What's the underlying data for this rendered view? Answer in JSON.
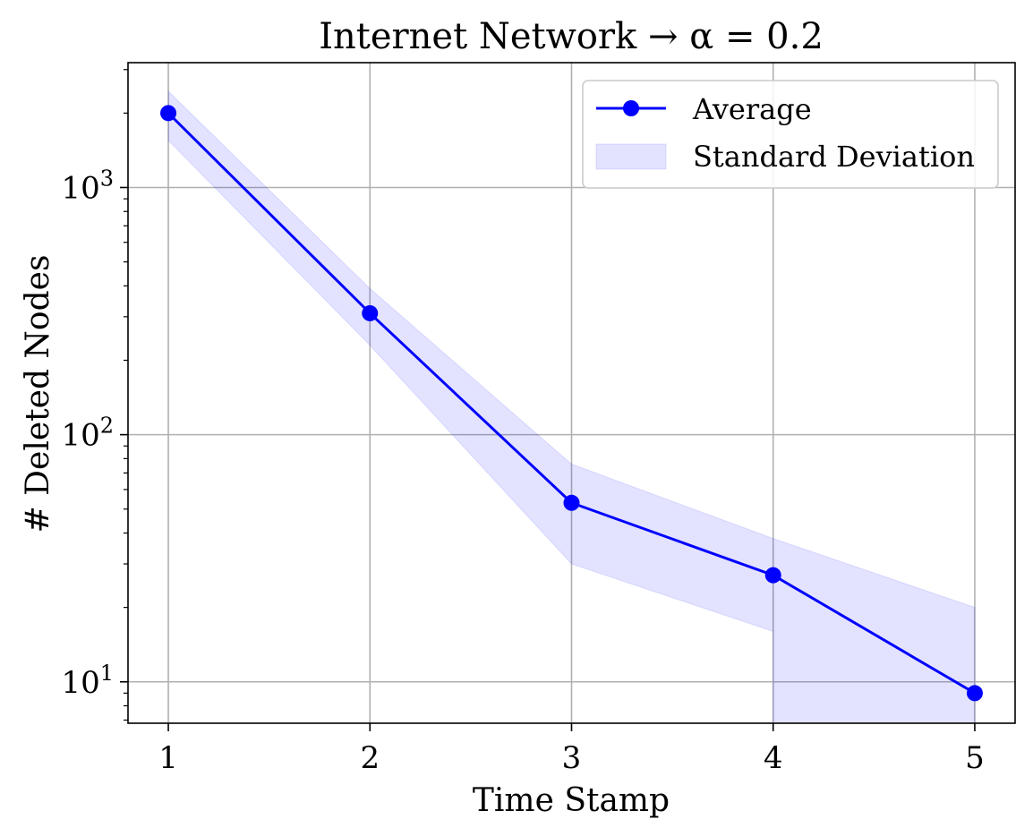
{
  "chart_data": {
    "type": "line",
    "title": "Internet Network → α = 0.2",
    "xlabel": "Time Stamp",
    "ylabel": "# Deleted Nodes",
    "yscale": "log",
    "x": [
      1,
      2,
      3,
      4,
      5
    ],
    "x_ticks": [
      "1",
      "2",
      "3",
      "4",
      "5"
    ],
    "y_ticks": [
      {
        "value": 10,
        "base": "10",
        "exp": "1"
      },
      {
        "value": 100,
        "base": "10",
        "exp": "2"
      },
      {
        "value": 1000,
        "base": "10",
        "exp": "3"
      }
    ],
    "xlim": [
      0.8,
      5.2
    ],
    "ylim": [
      6.8,
      3200
    ],
    "grid": true,
    "legend_position": "top-right",
    "series": [
      {
        "name": "Average",
        "values": [
          2000,
          310,
          53,
          27,
          9
        ],
        "color": "#0000ff",
        "marker": "circle"
      }
    ],
    "band": {
      "name": "Standard Deviation",
      "x": [
        1,
        2,
        3,
        4,
        4,
        5
      ],
      "lower": [
        1550,
        230,
        30,
        16,
        6.8,
        6.8
      ],
      "upper": [
        2450,
        390,
        76,
        38,
        38,
        20
      ],
      "color": "#0000ff",
      "opacity": 0.11
    }
  }
}
